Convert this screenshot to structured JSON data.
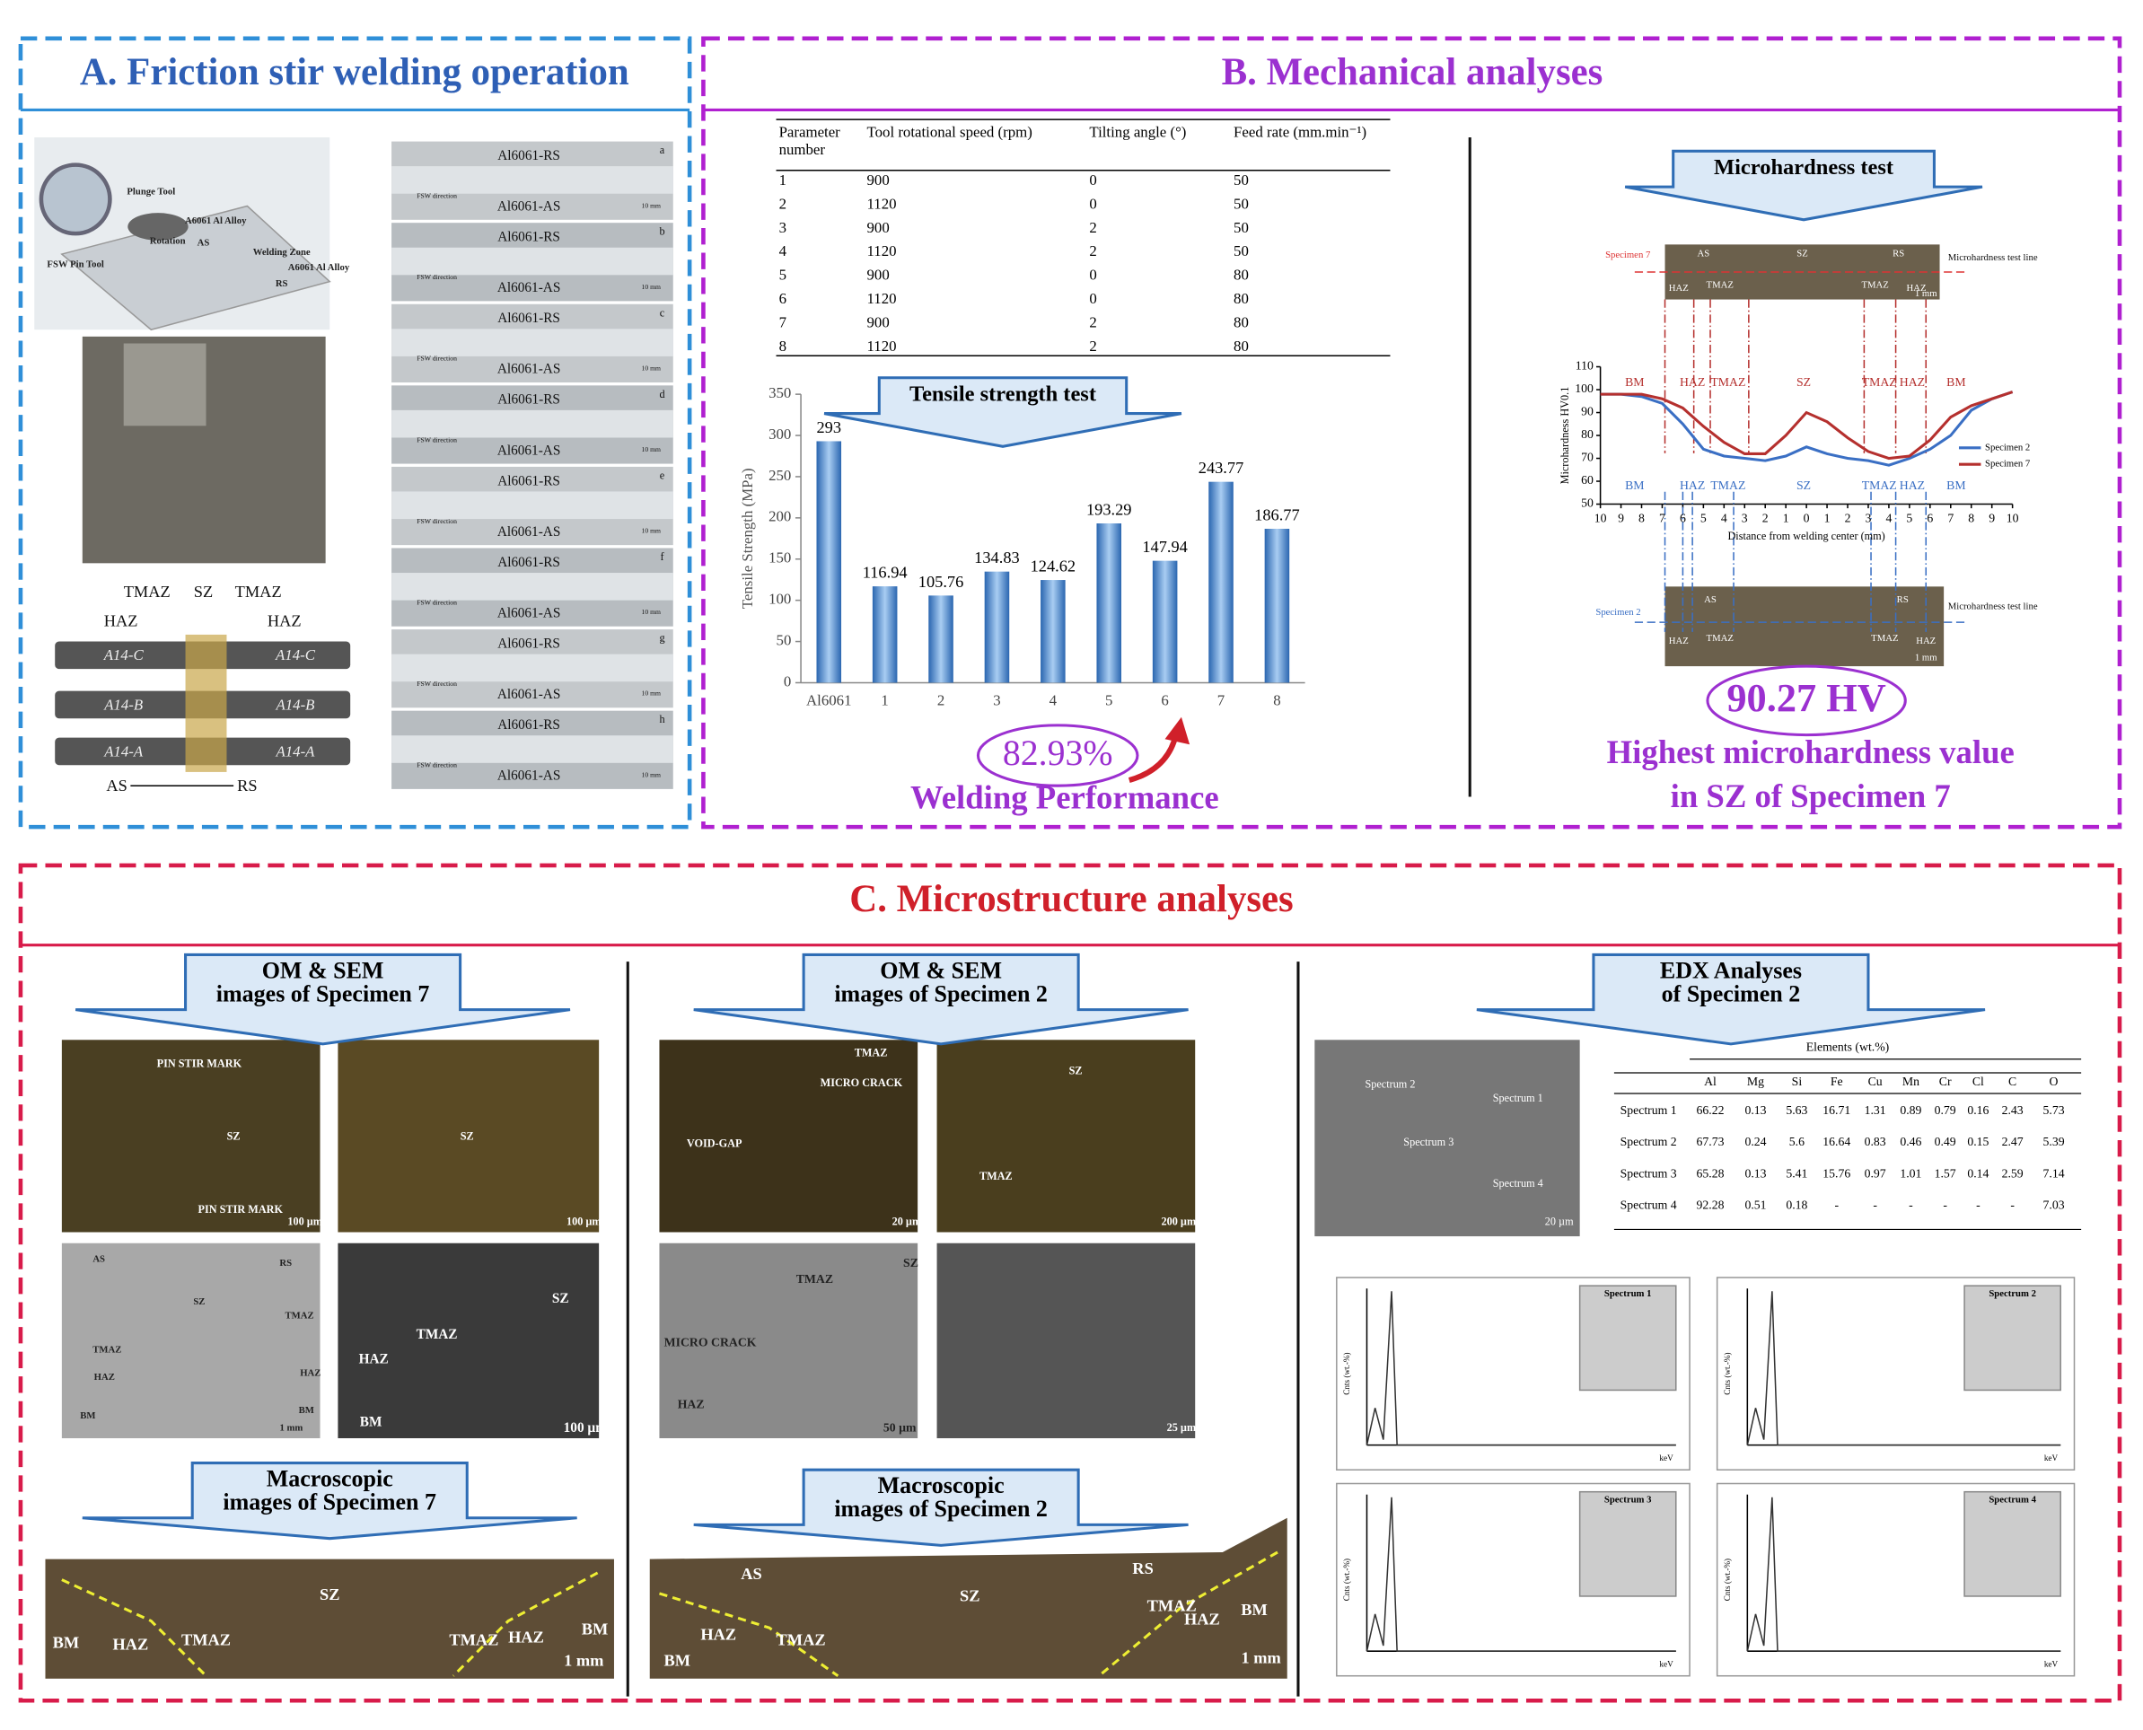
{
  "panel_a": {
    "title": "A. Friction stir welding operation",
    "schematic": [
      "Plunge Tool",
      "A6061 Al Alloy",
      "Rotation",
      "AS",
      "Welding Zone",
      "A6061 Al Alloy",
      "RS",
      "FSW Pin Tool"
    ],
    "zones": [
      "TMAZ",
      "SZ",
      "TMAZ",
      "HAZ",
      "HAZ"
    ],
    "specimens": [
      "A14-C",
      "A14-C",
      "A14-B",
      "A14-B",
      "A14-A",
      "A14-A"
    ],
    "sides": [
      "AS",
      "RS"
    ],
    "strips": {
      "direction": "FSW direction",
      "scale": "10 mm",
      "items": [
        {
          "letter": "a",
          "top": "Al6061-RS",
          "bottom": "Al6061-AS"
        },
        {
          "letter": "b",
          "top": "Al6061-RS",
          "bottom": "Al6061-AS"
        },
        {
          "letter": "c",
          "top": "Al6061-RS",
          "bottom": "Al6061-AS"
        },
        {
          "letter": "d",
          "top": "Al6061-RS",
          "bottom": "Al6061-AS"
        },
        {
          "letter": "e",
          "top": "Al6061-RS",
          "bottom": "Al6061-AS"
        },
        {
          "letter": "f",
          "top": "Al6061-RS",
          "bottom": "Al6061-AS"
        },
        {
          "letter": "g",
          "top": "Al6061-RS",
          "bottom": "Al6061-AS"
        },
        {
          "letter": "h",
          "top": "Al6061-RS",
          "bottom": "Al6061-AS"
        }
      ]
    }
  },
  "panel_b": {
    "title": "B. Mechanical analyses",
    "table": {
      "header": [
        [
          "Parameter",
          "number"
        ],
        [
          "Tool rotational speed (rpm)"
        ],
        [
          "Tilting angle (°)"
        ],
        [
          "Feed rate (mm.min⁻¹)"
        ]
      ],
      "rows": [
        [
          1,
          900,
          0,
          50
        ],
        [
          2,
          1120,
          0,
          50
        ],
        [
          3,
          900,
          2,
          50
        ],
        [
          4,
          1120,
          2,
          50
        ],
        [
          5,
          900,
          0,
          80
        ],
        [
          6,
          1120,
          0,
          80
        ],
        [
          7,
          900,
          2,
          80
        ],
        [
          8,
          1120,
          2,
          80
        ]
      ]
    },
    "tensile_banner": "Tensile strength test",
    "performance": "82.93%",
    "performance_label": "Welding Performance",
    "hardness_banner": "Microhardness test",
    "top_image": [
      "Specimen 7",
      "Microhardness test line",
      "AS",
      "SZ",
      "RS",
      "HAZ",
      "TMAZ",
      "TMAZ",
      "HAZ",
      "1 mm"
    ],
    "bottom_image": [
      "Specimen 2",
      "Microhardness test line",
      "AS",
      "RS",
      "HAZ",
      "TMAZ",
      "TMAZ",
      "HAZ",
      "1 mm"
    ],
    "highlight": "90.27 HV",
    "highlight_label": [
      "Highest microhardness value",
      "in SZ of Specimen 7"
    ]
  },
  "chart_data": [
    {
      "type": "bar",
      "y_label": "Tensile Strength (MPa)",
      "categories": [
        "Al6061",
        "1",
        "2",
        "3",
        "4",
        "5",
        "6",
        "7",
        "8"
      ],
      "values": [
        293,
        116.94,
        105.76,
        134.83,
        124.62,
        193.29,
        147.94,
        243.77,
        186.77
      ],
      "color": "#2a66b0",
      "ylim": [
        0,
        350
      ],
      "yticks": [
        0,
        50,
        100,
        150,
        200,
        250,
        300,
        350
      ]
    },
    {
      "type": "line",
      "x_label": "Distance from welding center (mm)",
      "y_label": "Microhardness HV0.1",
      "x": [
        -10,
        -9,
        -8,
        -7,
        -6,
        -5,
        -4,
        -3,
        -2,
        -1,
        0,
        1,
        2,
        3,
        4,
        5,
        6,
        7,
        8,
        9,
        10
      ],
      "series": [
        {
          "name": "Specimen 2",
          "color": "#3a6fc4",
          "values": [
            98,
            98,
            97,
            94,
            85,
            74,
            71,
            70,
            69,
            71,
            75,
            72,
            70,
            69,
            67,
            70,
            74,
            80,
            91,
            96,
            99
          ]
        },
        {
          "name": "Specimen 7",
          "color": "#b5302e",
          "values": [
            98,
            98,
            98,
            96,
            92,
            84,
            77,
            72,
            72,
            80,
            90,
            86,
            79,
            73,
            70,
            71,
            78,
            88,
            93,
            96,
            99
          ]
        }
      ],
      "zones": [
        "BM",
        "HAZ",
        "TMAZ",
        "SZ",
        "TMAZ",
        "HAZ",
        "BM"
      ],
      "xlim": [
        -10,
        10
      ],
      "xticks": [
        {
          "value": -10,
          "label": "10"
        },
        {
          "value": -9,
          "label": "9"
        },
        {
          "value": -8,
          "label": "8"
        },
        {
          "value": -7,
          "label": "7"
        },
        {
          "value": -6,
          "label": "6"
        },
        {
          "value": -5,
          "label": "5"
        },
        {
          "value": -4,
          "label": "4"
        },
        {
          "value": -3,
          "label": "3"
        },
        {
          "value": -2,
          "label": "2"
        },
        {
          "value": -1,
          "label": "1"
        },
        0,
        1,
        2,
        3,
        4,
        5,
        6,
        7,
        8,
        9,
        10
      ],
      "ylim": [
        50,
        110
      ],
      "yticks": [
        50,
        60,
        70,
        80,
        90,
        100,
        110
      ]
    }
  ],
  "panel_c": {
    "title": "C. Microstructure analyses",
    "specimen_7": {
      "banner": [
        "OM & SEM",
        "images of Specimen 7"
      ],
      "images": [
        [
          "PIN STIR MARK",
          "SZ",
          "PIN STIR MARK",
          "100 µm"
        ],
        [
          "SZ",
          "100 µm"
        ],
        [
          "AS",
          "RS",
          "SZ",
          "TMAZ",
          "TMAZ",
          "HAZ",
          "HAZ",
          "BM",
          "BM",
          "1 mm"
        ],
        [
          "SZ",
          "TMAZ",
          "HAZ",
          "BM",
          "100 µm"
        ]
      ],
      "macro_banner": [
        "Macroscopic",
        "images of Specimen 7"
      ],
      "macro": [
        "SZ",
        "BM",
        "HAZ",
        "TMAZ",
        "TMAZ",
        "HAZ",
        "BM",
        "1 mm"
      ]
    },
    "specimen_2": {
      "banner": [
        "OM & SEM",
        "images of Specimen 2"
      ],
      "images": [
        [
          "TMAZ",
          "MICRO CRACK",
          "VOID-GAP",
          "20 µm"
        ],
        [
          "SZ",
          "TMAZ",
          "200 µm"
        ],
        [
          "TMAZ",
          "SZ",
          "MICRO CRACK",
          "HAZ",
          "50 µm"
        ],
        [
          "25 µm"
        ]
      ],
      "macro_banner": [
        "Macroscopic",
        "images of Specimen 2"
      ],
      "macro": [
        "AS",
        "RS",
        "SZ",
        "TMAZ",
        "HAZ",
        "BM",
        "HAZ",
        "TMAZ",
        "BM",
        "1 mm"
      ]
    },
    "edx": {
      "banner": [
        "EDX Analyses",
        "of Specimen 2"
      ],
      "sem": [
        "Spectrum 2",
        "Spectrum 1",
        "Spectrum 3",
        "Spectrum 4",
        "20 µm"
      ],
      "table": {
        "caption": "Elements (wt.%)",
        "columns": [
          "Al",
          "Mg",
          "Si",
          "Fe",
          "Cu",
          "Mn",
          "Cr",
          "Cl",
          "C",
          "O"
        ],
        "rows": [
          [
            "Spectrum 1",
            66.22,
            0.13,
            5.63,
            16.71,
            1.31,
            0.89,
            0.79,
            0.16,
            2.43,
            5.73
          ],
          [
            "Spectrum 2",
            67.73,
            0.24,
            5.6,
            16.64,
            0.83,
            0.46,
            0.49,
            0.15,
            2.47,
            5.39
          ],
          [
            "Spectrum 3",
            65.28,
            0.13,
            5.41,
            15.76,
            0.97,
            1.01,
            1.57,
            0.14,
            2.59,
            7.14
          ],
          [
            "Spectrum 4",
            92.28,
            0.51,
            0.18,
            "-",
            "-",
            "-",
            "-",
            "-",
            "-",
            7.03
          ]
        ]
      },
      "spectra": [
        "Spectrum 1",
        "Spectrum 2",
        "Spectrum 3",
        "Spectrum 4"
      ],
      "x_unit": "keV",
      "y_label": "Cnts (wt.-%)"
    }
  }
}
